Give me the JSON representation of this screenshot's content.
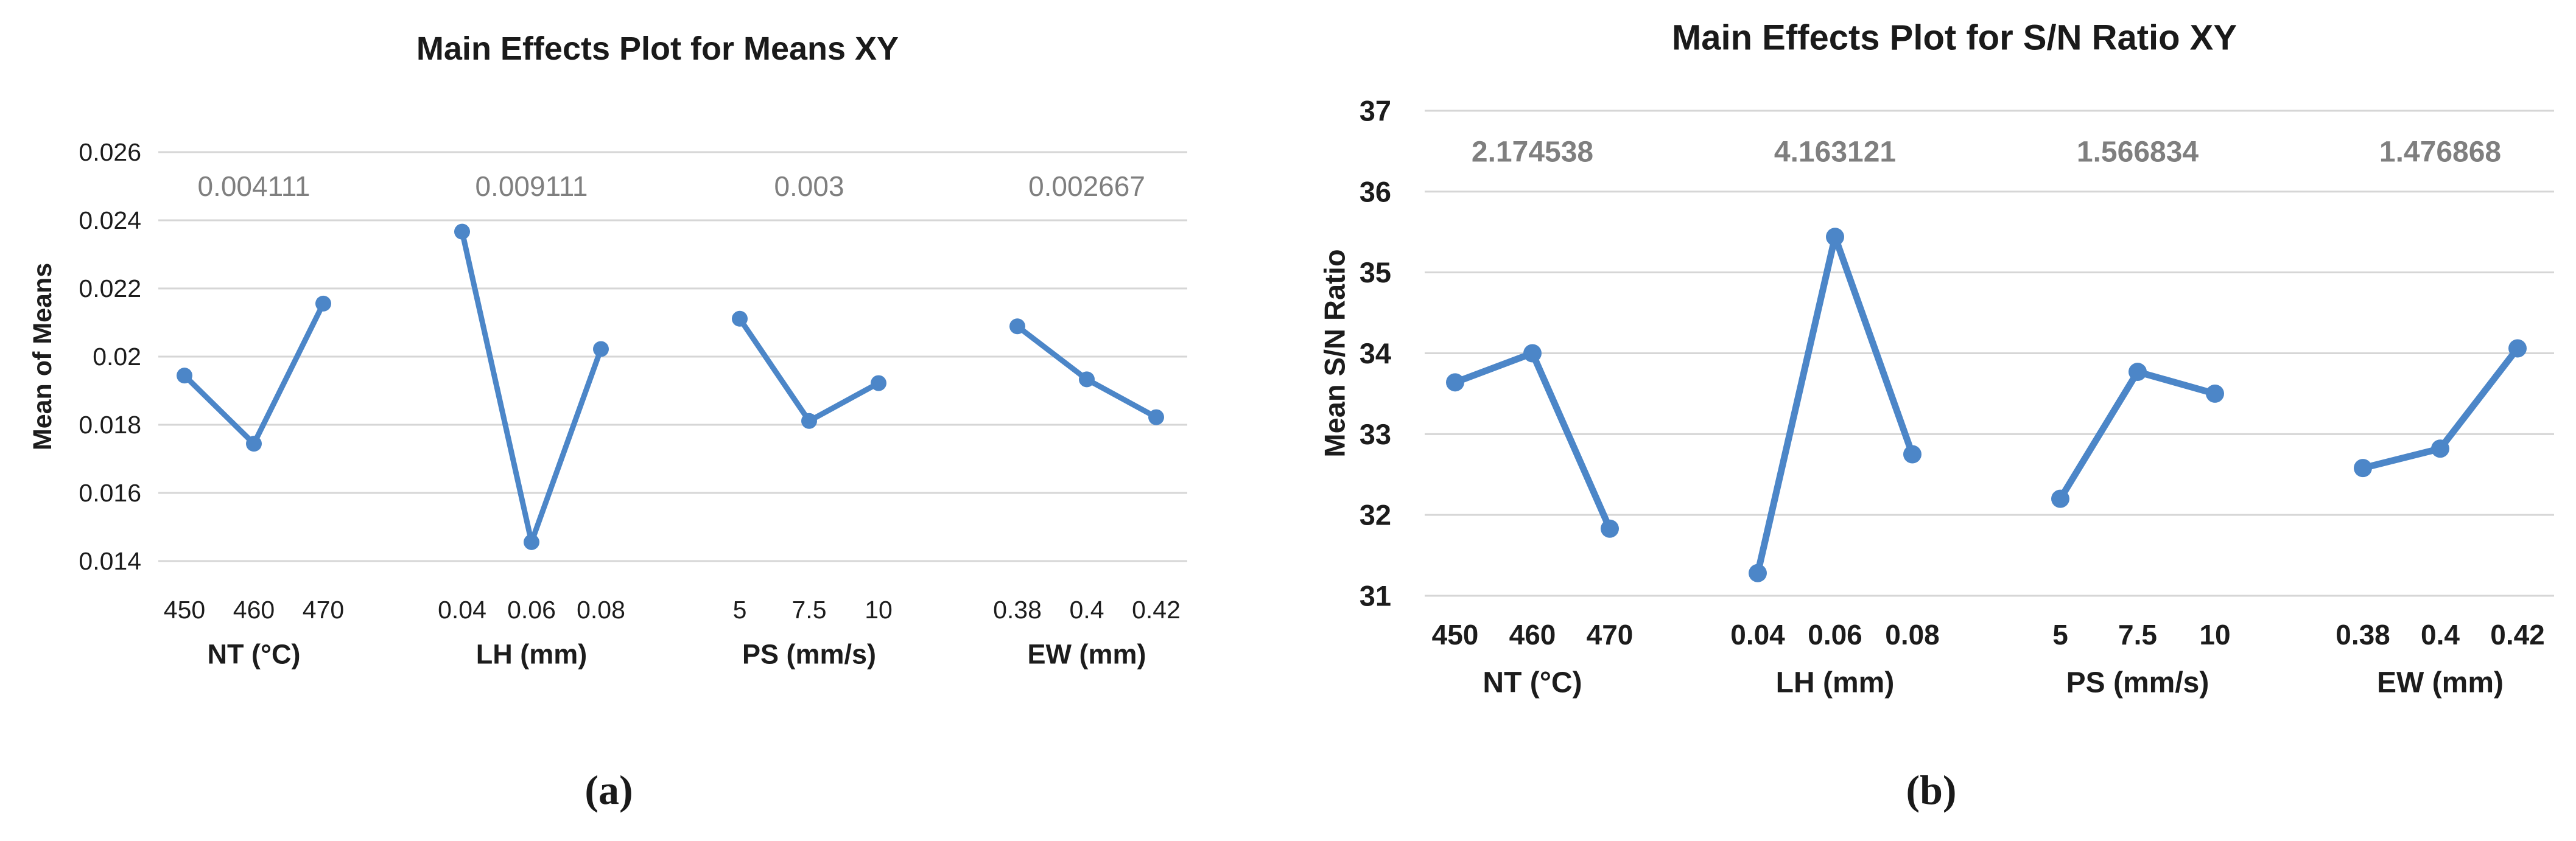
{
  "page": {
    "background": "#ffffff",
    "caption_a": "(a)",
    "caption_b": "(b)"
  },
  "colors": {
    "line": "#4C86C8",
    "grid": "#D6D6D6",
    "annotation": "#7F7F7F",
    "text": "#1C1C1C",
    "title": "#1A1A1A"
  },
  "chart_data": [
    {
      "type": "line",
      "title": "Main Effects Plot for Means XY",
      "ylabel": "Mean of Means",
      "ylim": [
        0.014,
        0.026
      ],
      "yticks": [
        "0.026",
        "0.024",
        "0.022",
        "0.02",
        "0.018",
        "0.016",
        "0.014"
      ],
      "grid": true,
      "legend": "none",
      "marker": "circle",
      "panels": [
        {
          "label": "NT (°C)",
          "categories": [
            "450",
            "460",
            "470"
          ],
          "values": [
            0.019444,
            0.017444,
            0.021556
          ],
          "delta_label": "0.004111"
        },
        {
          "label": "LH (mm)",
          "categories": [
            "0.04",
            "0.06",
            "0.08"
          ],
          "values": [
            0.023667,
            0.014556,
            0.020222
          ],
          "delta_label": "0.009111"
        },
        {
          "label": "PS (mm/s)",
          "categories": [
            "5",
            "7.5",
            "10"
          ],
          "values": [
            0.021111,
            0.018111,
            0.019222
          ],
          "delta_label": "0.003"
        },
        {
          "label": "EW (mm)",
          "categories": [
            "0.38",
            "0.4",
            "0.42"
          ],
          "values": [
            0.020889,
            0.019333,
            0.018222
          ],
          "delta_label": "0.002667"
        }
      ]
    },
    {
      "type": "line",
      "title": "Main Effects Plot for S/N Ratio XY",
      "ylabel": "Mean S/N Ratio",
      "ylim": [
        31,
        37
      ],
      "yticks": [
        "37",
        "36",
        "35",
        "34",
        "33",
        "32",
        "31"
      ],
      "grid": true,
      "legend": "none",
      "marker": "circle",
      "panels": [
        {
          "label": "NT (°C)",
          "categories": [
            "450",
            "460",
            "470"
          ],
          "values": [
            33.64,
            34.0,
            31.83
          ],
          "delta_label": "2.174538"
        },
        {
          "label": "LH (mm)",
          "categories": [
            "0.04",
            "0.06",
            "0.08"
          ],
          "values": [
            31.28,
            35.44,
            32.75
          ],
          "delta_label": "4.163121"
        },
        {
          "label": "PS (mm/s)",
          "categories": [
            "5",
            "7.5",
            "10"
          ],
          "values": [
            32.2,
            33.77,
            33.5
          ],
          "delta_label": "1.566834"
        },
        {
          "label": "EW (mm)",
          "categories": [
            "0.38",
            "0.4",
            "0.42"
          ],
          "values": [
            32.58,
            32.82,
            34.06
          ],
          "delta_label": "1.476868"
        }
      ]
    }
  ]
}
